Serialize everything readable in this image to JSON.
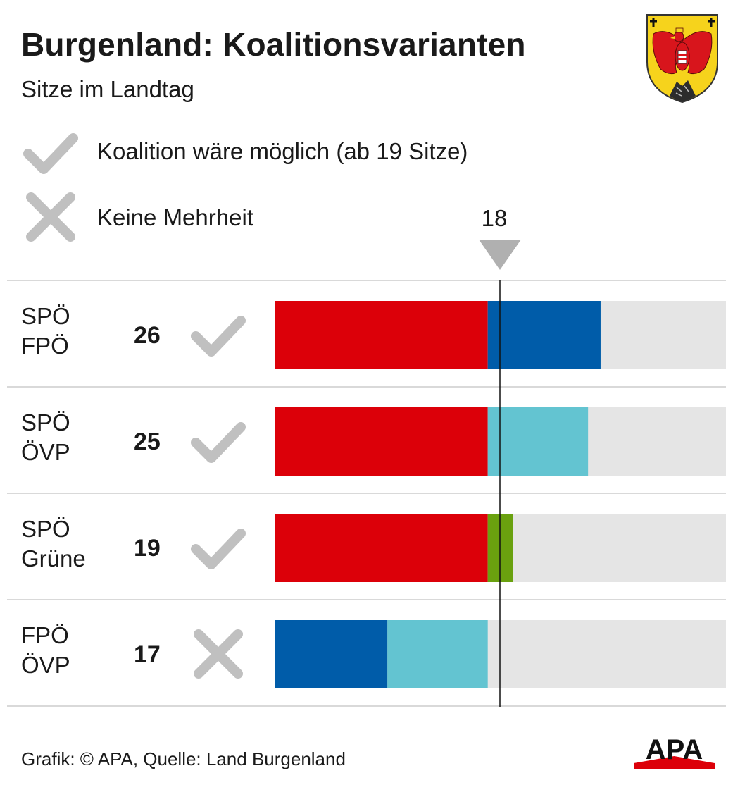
{
  "header": {
    "title": "Burgenland: Koalitionsvarianten",
    "subtitle": "Sitze im Landtag"
  },
  "legend": {
    "possible_label": "Koalition wäre möglich (ab 19 Sitze)",
    "possible_icon": "check-icon",
    "no_majority_label": "Keine Mehrheit",
    "no_majority_icon": "cross-icon"
  },
  "marker": {
    "value": 18,
    "label": "18"
  },
  "footer": {
    "source": "Grafik: © APA, Quelle: Land Burgenland",
    "logo_text": "APA"
  },
  "colors": {
    "SPÖ": "#dc0009",
    "FPÖ": "#005ca9",
    "ÖVP": "#63c4d1",
    "Grüne": "#6aa10f",
    "remainder": "#e5e5e5",
    "icon_gray": "#c0c0c0",
    "divider": "#d9d9d9"
  },
  "chart_data": {
    "type": "bar",
    "stacked": true,
    "orientation": "horizontal",
    "xlim": [
      0,
      36
    ],
    "threshold": 18,
    "categories": [
      "SPÖ FPÖ",
      "SPÖ ÖVP",
      "SPÖ Grüne",
      "FPÖ ÖVP"
    ],
    "rows": [
      {
        "parties": [
          "SPÖ",
          "FPÖ"
        ],
        "total": 26,
        "total_label": "26",
        "majority": true,
        "segments": [
          {
            "party": "SPÖ",
            "seats": 17
          },
          {
            "party": "FPÖ",
            "seats": 9
          }
        ]
      },
      {
        "parties": [
          "SPÖ",
          "ÖVP"
        ],
        "total": 25,
        "total_label": "25",
        "majority": true,
        "segments": [
          {
            "party": "SPÖ",
            "seats": 17
          },
          {
            "party": "ÖVP",
            "seats": 8
          }
        ]
      },
      {
        "parties": [
          "SPÖ",
          "Grüne"
        ],
        "total": 19,
        "total_label": "19",
        "majority": true,
        "segments": [
          {
            "party": "SPÖ",
            "seats": 17
          },
          {
            "party": "Grüne",
            "seats": 2
          }
        ]
      },
      {
        "parties": [
          "FPÖ",
          "ÖVP"
        ],
        "total": 17,
        "total_label": "17",
        "majority": false,
        "segments": [
          {
            "party": "FPÖ",
            "seats": 9
          },
          {
            "party": "ÖVP",
            "seats": 8
          }
        ]
      }
    ]
  }
}
